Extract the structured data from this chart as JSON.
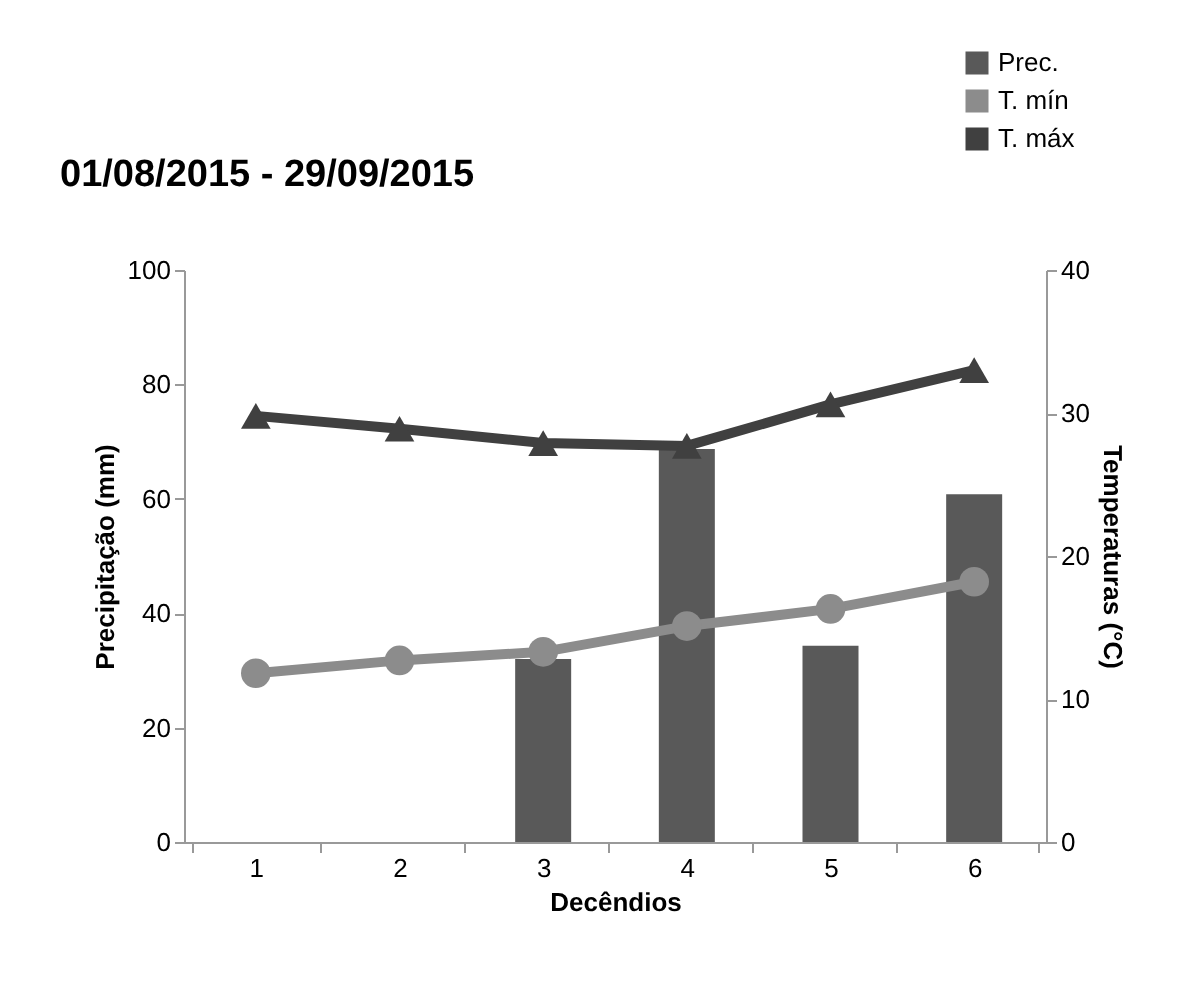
{
  "chart_data": {
    "type": "bar",
    "title": "01/08/2015 - 29/09/2015",
    "xlabel": "Decêndios",
    "ylabel": "Precipitação (mm)",
    "y2label": "Temperaturas (°C)",
    "categories": [
      "1",
      "2",
      "3",
      "4",
      "5",
      "6"
    ],
    "series": [
      {
        "name": "Prec.",
        "color": "#595959",
        "values": [
          0,
          0,
          32,
          68.7,
          34.3,
          60.8
        ]
      },
      {
        "name": "T. mín",
        "type": "line",
        "axis": "y2",
        "marker": "circle",
        "color": "#8c8c8c",
        "values": [
          11.8,
          12.7,
          13.3,
          15.1,
          16.3,
          18.2
        ]
      },
      {
        "name": "T. máx",
        "type": "line",
        "axis": "y2",
        "marker": "triangle",
        "color": "#404040",
        "values": [
          29.8,
          28.9,
          27.9,
          27.7,
          30.6,
          33.0
        ]
      }
    ],
    "ylim": [
      0,
      100
    ],
    "yticks": [
      0,
      20,
      40,
      60,
      80,
      100
    ],
    "y2lim": [
      0,
      40
    ],
    "y2ticks": [
      0,
      10,
      20,
      30,
      40
    ],
    "grid": false,
    "legend": "top right"
  }
}
